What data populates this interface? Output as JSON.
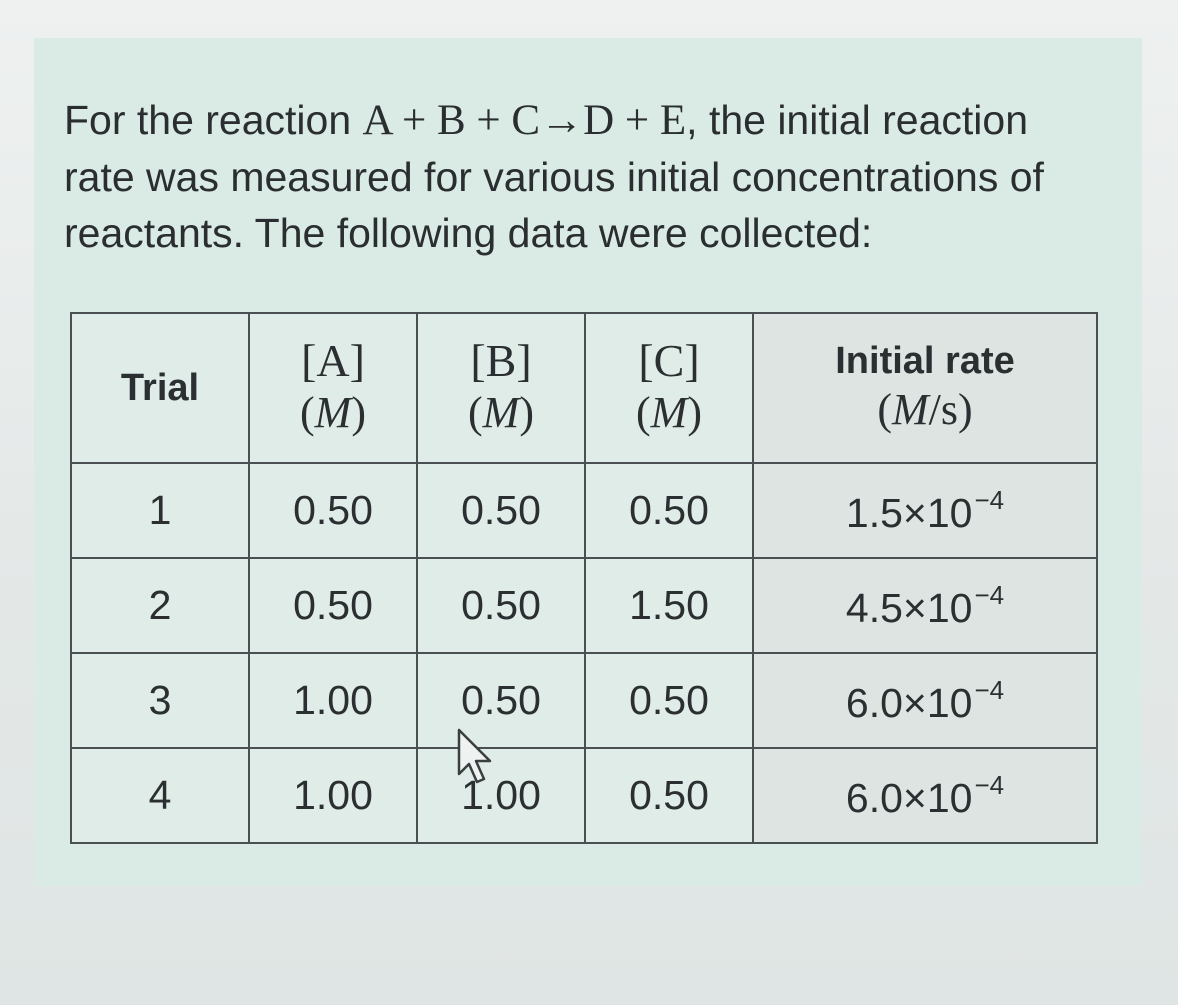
{
  "question": {
    "prefix": "For the reaction ",
    "equation": "A + B + C→D + E",
    "suffix": ", the initial reaction rate was measured for various initial concentrations of reactants. The following data were collected:"
  },
  "table": {
    "headers": {
      "trial": "Trial",
      "a_symbol": "[A]",
      "a_unit": "M",
      "b_symbol": "[B]",
      "b_unit": "M",
      "c_symbol": "[C]",
      "c_unit": "M",
      "rate": "Initial rate",
      "rate_unit_num": "M",
      "rate_unit_den": "/s"
    },
    "rows": [
      {
        "trial": "1",
        "a": "0.50",
        "b": "0.50",
        "c": "0.50",
        "rate_mantissa": "1.5×10",
        "rate_exp": "−4"
      },
      {
        "trial": "2",
        "a": "0.50",
        "b": "0.50",
        "c": "1.50",
        "rate_mantissa": "4.5×10",
        "rate_exp": "−4"
      },
      {
        "trial": "3",
        "a": "1.00",
        "b": "0.50",
        "c": "0.50",
        "rate_mantissa": "6.0×10",
        "rate_exp": "−4"
      },
      {
        "trial": "4",
        "a": "1.00",
        "b": "1.00",
        "c": "0.50",
        "rate_mantissa": "6.0×10",
        "rate_exp": "−4"
      }
    ]
  },
  "colors": {
    "panel_background": "#d9ebe4",
    "text": "#2b2e30",
    "table_border": "#4a4f52"
  },
  "icons": {
    "cursor": "mouse-pointer-arrow-icon"
  }
}
